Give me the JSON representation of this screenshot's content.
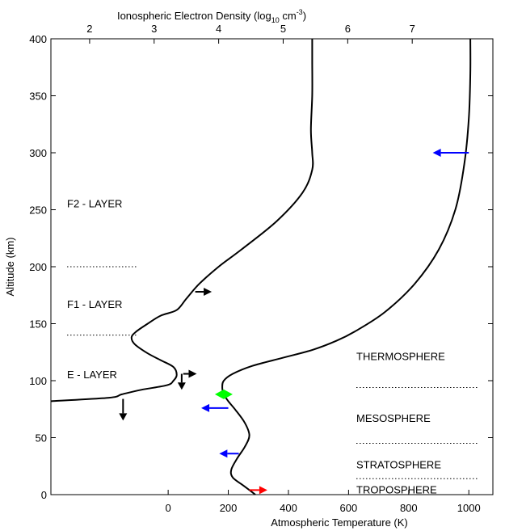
{
  "chart_data": {
    "type": "line",
    "title": "",
    "top_axis": {
      "label_prefix": "Ionospheric Electron Density (log",
      "label_sub": "10",
      "label_mid": " cm",
      "label_sup": "-3",
      "label_suffix": ")",
      "ticks": [
        2,
        3,
        4,
        5,
        6,
        7
      ],
      "range": [
        1.4,
        8.25
      ]
    },
    "x_axis": {
      "label": "Atmospheric Temperature (K)",
      "ticks": [
        0,
        200,
        400,
        600,
        800,
        1000
      ],
      "range": [
        -390,
        1080
      ]
    },
    "y_axis": {
      "label": "Altitude (km)",
      "ticks": [
        0,
        50,
        100,
        150,
        200,
        250,
        300,
        350,
        400
      ],
      "range": [
        0,
        400
      ]
    },
    "series": [
      {
        "axis": "top",
        "color": "#000000",
        "points": [
          [
            1.4,
            82
          ],
          [
            2.3,
            85
          ],
          [
            2.5,
            88
          ],
          [
            2.8,
            92
          ],
          [
            3.2,
            96
          ],
          [
            3.3,
            100
          ],
          [
            3.35,
            105
          ],
          [
            3.3,
            112
          ],
          [
            3.1,
            118
          ],
          [
            2.9,
            124
          ],
          [
            2.7,
            132
          ],
          [
            2.65,
            138
          ],
          [
            2.72,
            143
          ],
          [
            2.9,
            150
          ],
          [
            3.1,
            157
          ],
          [
            3.35,
            162
          ],
          [
            3.5,
            172
          ],
          [
            3.7,
            185
          ],
          [
            4.0,
            200
          ],
          [
            4.35,
            215
          ],
          [
            4.9,
            240
          ],
          [
            5.3,
            265
          ],
          [
            5.45,
            285
          ],
          [
            5.45,
            300
          ],
          [
            5.43,
            320
          ],
          [
            5.45,
            350
          ],
          [
            5.45,
            380
          ],
          [
            5.45,
            400
          ]
        ]
      },
      {
        "axis": "bottom",
        "color": "#000000",
        "points": [
          [
            290,
            0
          ],
          [
            250,
            8
          ],
          [
            215,
            15
          ],
          [
            210,
            22
          ],
          [
            230,
            32
          ],
          [
            255,
            42
          ],
          [
            270,
            52
          ],
          [
            255,
            63
          ],
          [
            225,
            74
          ],
          [
            200,
            82
          ],
          [
            185,
            88
          ],
          [
            180,
            94
          ],
          [
            185,
            100
          ],
          [
            215,
            106
          ],
          [
            280,
            113
          ],
          [
            380,
            120
          ],
          [
            480,
            127
          ],
          [
            560,
            135
          ],
          [
            620,
            143
          ],
          [
            720,
            160
          ],
          [
            820,
            185
          ],
          [
            900,
            215
          ],
          [
            955,
            250
          ],
          [
            985,
            290
          ],
          [
            1000,
            330
          ],
          [
            1005,
            370
          ],
          [
            1005,
            400
          ]
        ]
      }
    ],
    "layer_labels": [
      {
        "text": "F2 - LAYER",
        "altitude": 252,
        "dotted_at": 200
      },
      {
        "text": "F1 - LAYER",
        "altitude": 164,
        "dotted_at": 140
      },
      {
        "text": "E - LAYER",
        "altitude": 102
      }
    ],
    "region_labels": [
      {
        "text": "THERMOSPHERE",
        "altitude": 118,
        "dotted_at": 94
      },
      {
        "text": "MESOSPHERE",
        "altitude": 64,
        "dotted_at": 45
      },
      {
        "text": "STRATOSPHERE",
        "altitude": 23,
        "dotted_at": 14
      },
      {
        "text": "TROPOSPHERE",
        "altitude": 1
      }
    ],
    "arrows": [
      {
        "color": "#0000ff",
        "direction": "left",
        "temp_from": 1000,
        "temp_to": 880,
        "altitude": 300
      },
      {
        "color": "#000000",
        "direction": "right",
        "temp_from": 90,
        "temp_to": 145,
        "altitude": 178
      },
      {
        "color": "#000000",
        "direction": "right",
        "temp_from": 50,
        "temp_to": 95,
        "altitude": 106
      },
      {
        "color": "#000000",
        "direction": "down",
        "temp": 45,
        "altitude_from": 106,
        "altitude_to": 92
      },
      {
        "color": "#000000",
        "direction": "down",
        "temp": -150,
        "altitude_from": 84,
        "altitude_to": 65
      },
      {
        "color": "#0000ff",
        "direction": "left",
        "temp_from": 200,
        "temp_to": 110,
        "altitude": 76
      },
      {
        "color": "#0000ff",
        "direction": "left",
        "temp_from": 235,
        "temp_to": 170,
        "altitude": 36
      },
      {
        "color": "#ff0000",
        "direction": "right",
        "temp_from": 270,
        "temp_to": 330,
        "altitude": 4
      }
    ],
    "marker": {
      "color": "#00ff00",
      "shape": "diamond",
      "temp": 185,
      "altitude": 88
    },
    "grid": false
  }
}
